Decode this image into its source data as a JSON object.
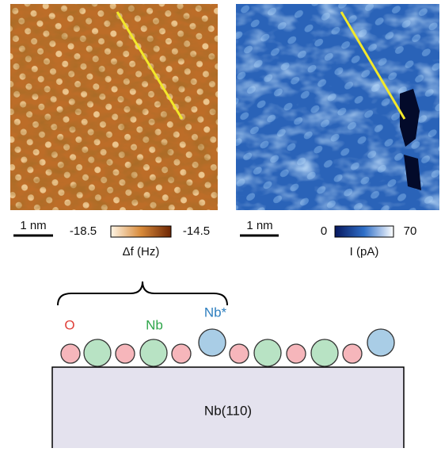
{
  "images": [
    {
      "scale_bar": "1 nm",
      "colorbar": {
        "min": -18.5,
        "max": -14.5,
        "label": "Δf (Hz)"
      }
    },
    {
      "scale_bar": "1 nm",
      "colorbar": {
        "min": 0,
        "max": 70,
        "label": "I (pA)"
      }
    }
  ],
  "schematic": {
    "labels": [
      "O",
      "Nb",
      "Nb*"
    ],
    "substrate": "Nb(110)"
  }
}
